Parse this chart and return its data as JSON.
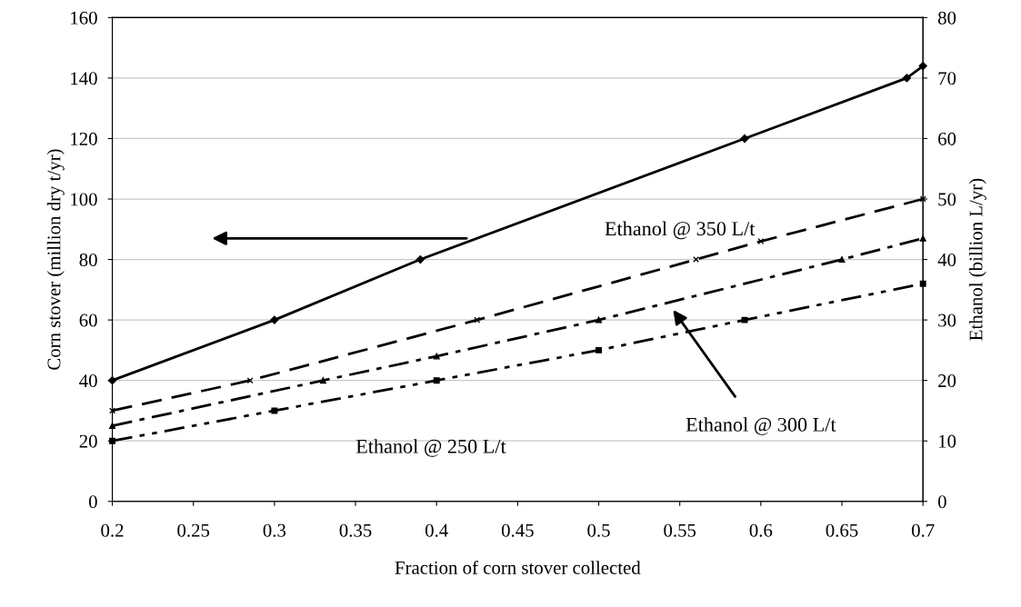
{
  "chart_data": {
    "type": "line",
    "xlabel": "Fraction of corn stover collected",
    "ylabel": "Corn stover (million dry t/yr)",
    "y2label": "Ethanol (billion L/yr)",
    "xlim": [
      0.2,
      0.7
    ],
    "xticks": [
      0.2,
      0.25,
      0.3,
      0.35,
      0.4,
      0.45,
      0.5,
      0.55,
      0.6,
      0.65,
      0.7
    ],
    "ylim": [
      0,
      160
    ],
    "yticks": [
      0,
      20,
      40,
      60,
      80,
      100,
      120,
      140,
      160
    ],
    "y2lim": [
      0,
      80
    ],
    "y2ticks": [
      0,
      10,
      20,
      30,
      40,
      50,
      60,
      70,
      80
    ],
    "grid": "y",
    "series": [
      {
        "color": "#000000",
        "marker": "diamond",
        "line_style": "solid",
        "x": [
          0.2,
          0.3,
          0.39,
          0.59,
          0.69,
          0.7
        ],
        "values": [
          40,
          60,
          80,
          120,
          140,
          144
        ]
      },
      {
        "color": "#000000",
        "marker": "cross",
        "line_style": "dashed",
        "axis": "y2",
        "x": [
          0.2,
          0.285,
          0.425,
          0.56,
          0.6,
          0.7
        ],
        "values": [
          15,
          20,
          30,
          40,
          43,
          50
        ]
      },
      {
        "color": "#000000",
        "marker": "triangle",
        "line_style": "dashdot",
        "axis": "y2",
        "x": [
          0.2,
          0.33,
          0.4,
          0.5,
          0.65,
          0.7
        ],
        "values": [
          12.5,
          20,
          24,
          30,
          40,
          43.5
        ]
      },
      {
        "color": "#000000",
        "marker": "square",
        "line_style": "dashdotdot",
        "axis": "y2",
        "x": [
          0.2,
          0.3,
          0.4,
          0.5,
          0.59,
          0.7
        ],
        "values": [
          10,
          15,
          20,
          25,
          30,
          36
        ]
      }
    ],
    "annotations": [
      "Ethanol @ 350 L/t",
      "Ethanol @ 300 L/t",
      "Ethanol @ 250 L/t"
    ]
  }
}
